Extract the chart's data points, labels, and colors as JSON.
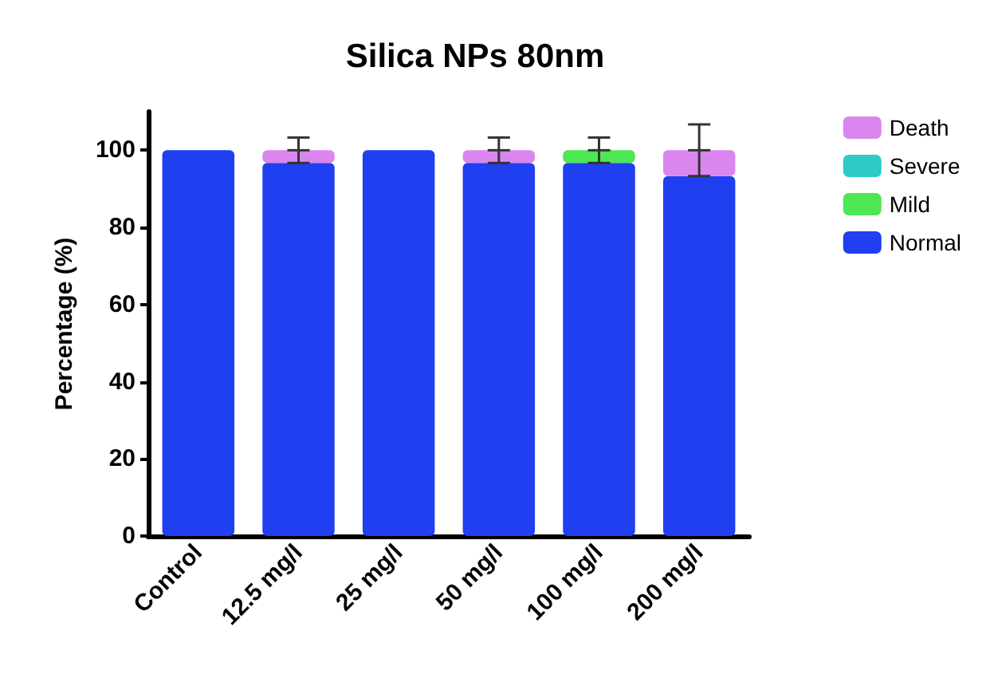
{
  "chart_data": {
    "type": "bar",
    "title": "Silica NPs 80nm",
    "ylabel": "Percentage (%)",
    "categories": [
      "Control",
      "12.5 mg/l",
      "25 mg/l",
      "50 mg/l",
      "100 mg/l",
      "200 mg/l"
    ],
    "stacked": true,
    "series": [
      {
        "name": "Normal",
        "color": "#1f3ff0",
        "values": [
          100,
          96.7,
          100,
          96.7,
          96.7,
          93.3
        ]
      },
      {
        "name": "Mild",
        "color": "#4ee652",
        "values": [
          0,
          0,
          0,
          0,
          3.3,
          0
        ]
      },
      {
        "name": "Severe",
        "color": "#2ccbc6",
        "values": [
          0,
          0,
          0,
          0,
          0,
          0
        ]
      },
      {
        "name": "Death",
        "color": "#db86ef",
        "values": [
          0,
          3.3,
          0,
          3.3,
          0,
          6.7
        ],
        "errors": [
          null,
          3.3,
          null,
          3.3,
          3.3,
          6.7
        ]
      }
    ],
    "ylim": [
      0,
      110
    ],
    "yticks": [
      0,
      20,
      40,
      60,
      80,
      100
    ],
    "grid": false,
    "legend": "top right"
  }
}
